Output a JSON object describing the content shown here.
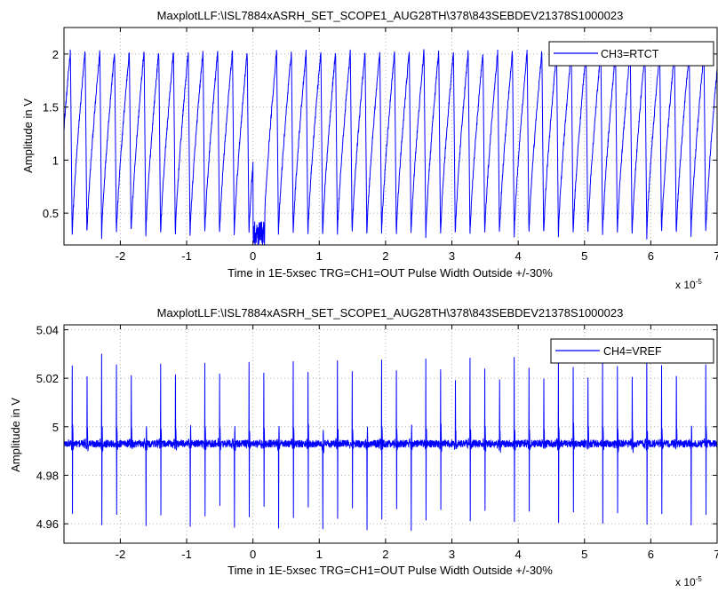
{
  "chart_data": [
    {
      "type": "line",
      "title": "MaxplotLLF:\\ISL7884xASRH_SET_SCOPE1_AUG28TH\\378\\843SEBDEV21378S1000023",
      "xlabel": "Time in 1E-5xsec TRG=CH1=OUT Pulse Width Outside +/-30%",
      "ylabel": "Amplitude in V",
      "x_exponent": {
        "base": "x 10",
        "power": "-5"
      },
      "xlim": [
        -2.85,
        7
      ],
      "ylim": [
        0.2,
        2.25
      ],
      "x_ticks": [
        -2,
        -1,
        0,
        1,
        2,
        3,
        4,
        5,
        6,
        7
      ],
      "x_tick_labels": [
        "-2",
        "-1",
        "0",
        "1",
        "2",
        "3",
        "4",
        "5",
        "6",
        "7"
      ],
      "y_ticks": [
        0.5,
        1,
        1.5,
        2
      ],
      "y_tick_labels": [
        "0.5",
        "1",
        "1.5",
        "2"
      ],
      "grid": true,
      "legend": {
        "position": "top-right"
      },
      "series": [
        {
          "name": "CH3=RTCT",
          "color": "#0000ff",
          "waveform": "sawtooth",
          "period": 0.2222,
          "phase": -0.06,
          "min": 0.28,
          "max": 2.03,
          "gap_x": [
            0.0,
            0.18
          ],
          "gap_level": [
            0.15,
            0.42
          ]
        }
      ]
    },
    {
      "type": "line",
      "title": "MaxplotLLF:\\ISL7884xASRH_SET_SCOPE1_AUG28TH\\378\\843SEBDEV21378S1000023",
      "xlabel": "Time in 1E-5xsec TRG=CH1=OUT Pulse Width Outside +/-30%",
      "ylabel": "Amplitude in V",
      "x_exponent": {
        "base": "x 10",
        "power": "-5"
      },
      "xlim": [
        -2.85,
        7
      ],
      "ylim": [
        4.952,
        5.042
      ],
      "x_ticks": [
        -2,
        -1,
        0,
        1,
        2,
        3,
        4,
        5,
        6,
        7
      ],
      "x_tick_labels": [
        "-2",
        "-1",
        "0",
        "1",
        "2",
        "3",
        "4",
        "5",
        "6",
        "7"
      ],
      "y_ticks": [
        4.96,
        4.98,
        5.0,
        5.02,
        5.04
      ],
      "y_tick_labels": [
        "4.96",
        "4.98",
        "5",
        "5.02",
        "5.04"
      ],
      "grid": true,
      "legend": {
        "position": "top-right"
      },
      "series": [
        {
          "name": "CH4=VREF",
          "color": "#0000ff",
          "waveform": "spikes",
          "period": 0.2222,
          "phase": -0.06,
          "baseline": 4.993,
          "spike_max": 5.03,
          "spike_min": 4.957
        }
      ]
    }
  ]
}
